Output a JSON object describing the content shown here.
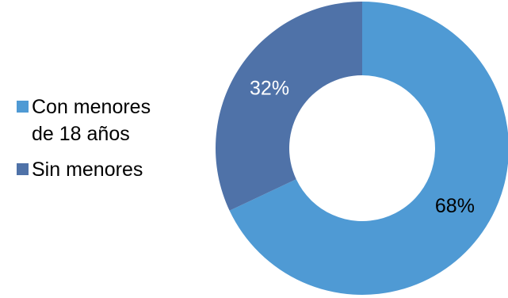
{
  "chart_data": {
    "type": "pie",
    "style": "donut",
    "title": "",
    "legend_position": "left",
    "slices": [
      {
        "name": "Con menores de 18 años",
        "legend_label": "Con menores\nde 18 años",
        "value": 68,
        "label": "68%",
        "color": "#4f9ad4",
        "label_color": "#000000"
      },
      {
        "name": "Sin menores",
        "legend_label": "Sin menores",
        "value": 32,
        "label": "32%",
        "color": "#4f72a8",
        "label_color": "#ffffff"
      }
    ]
  }
}
